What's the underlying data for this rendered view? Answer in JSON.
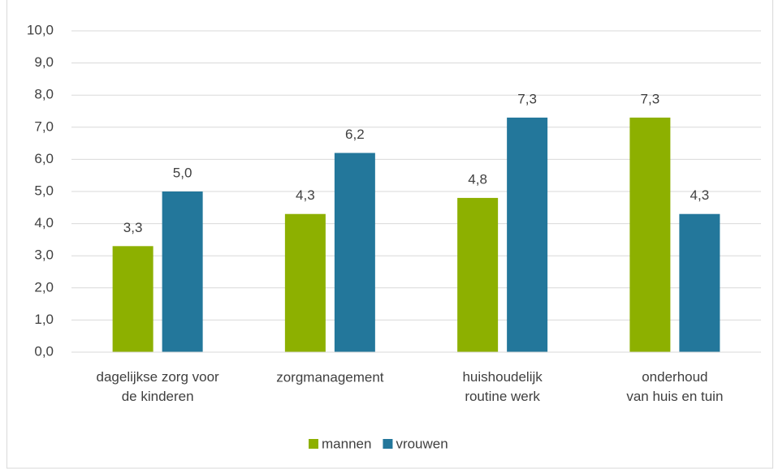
{
  "chart_data": {
    "type": "bar",
    "categories": [
      "dagelijkse zorg voor\nde kinderen",
      "zorgmanagement",
      "huishoudelijk\nroutine werk",
      "onderhoud\nvan huis en tuin"
    ],
    "series": [
      {
        "name": "mannen",
        "color": "#8db000",
        "values": [
          3.3,
          4.3,
          4.8,
          7.3
        ],
        "value_labels": [
          "3,3",
          "4,3",
          "4,8",
          "7,3"
        ]
      },
      {
        "name": "vrouwen",
        "color": "#23779b",
        "values": [
          5.0,
          6.2,
          7.3,
          4.3
        ],
        "value_labels": [
          "5,0",
          "6,2",
          "7,3",
          "4,3"
        ]
      }
    ],
    "ylim": [
      0,
      10
    ],
    "yticks": [
      {
        "value": 0,
        "label": "0,0"
      },
      {
        "value": 1,
        "label": "1,0"
      },
      {
        "value": 2,
        "label": "2,0"
      },
      {
        "value": 3,
        "label": "3,0"
      },
      {
        "value": 4,
        "label": "4,0"
      },
      {
        "value": 5,
        "label": "5,0"
      },
      {
        "value": 6,
        "label": "6,0"
      },
      {
        "value": 7,
        "label": "7,0"
      },
      {
        "value": 8,
        "label": "8,0"
      },
      {
        "value": 9,
        "label": "9,0"
      },
      {
        "value": 10,
        "label": "10,0"
      }
    ],
    "grid": true,
    "legend": "bottom"
  }
}
